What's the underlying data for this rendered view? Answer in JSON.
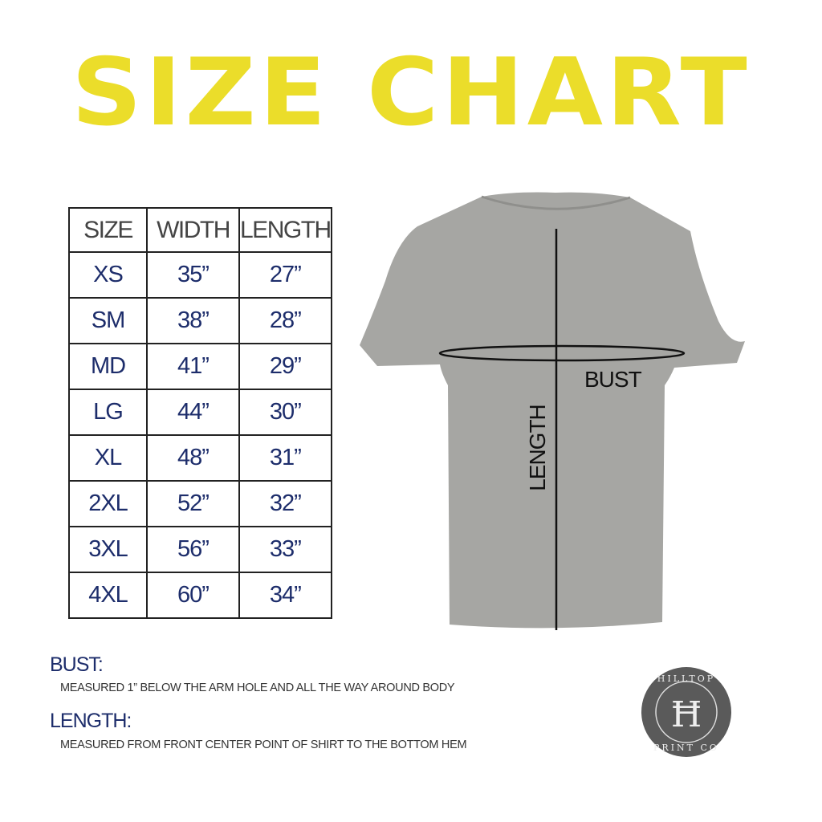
{
  "title": "SIZE CHART",
  "table": {
    "headers": [
      "SIZE",
      "WIDTH",
      "LENGTH"
    ],
    "rows": [
      [
        "XS",
        "35”",
        "27”"
      ],
      [
        "SM",
        "38”",
        "28”"
      ],
      [
        "MD",
        "41”",
        "29”"
      ],
      [
        "LG",
        "44”",
        "30”"
      ],
      [
        "XL",
        "48”",
        "31”"
      ],
      [
        "2XL",
        "52”",
        "32”"
      ],
      [
        "3XL",
        "56”",
        "33”"
      ],
      [
        "4XL",
        "60”",
        "34”"
      ]
    ]
  },
  "diagram": {
    "bust_label": "BUST",
    "length_label": "LENGTH"
  },
  "notes": [
    {
      "heading": "BUST:",
      "text": "MEASURED 1” BELOW THE ARM HOLE AND ALL THE WAY AROUND BODY"
    },
    {
      "heading": "LENGTH:",
      "text": "MEASURED FROM FRONT CENTER POINT OF SHIRT TO THE BOTTOM HEM"
    }
  ],
  "logo": {
    "text": "HILLTOP PRINT CO",
    "monogram": "HT"
  },
  "colors": {
    "title": "#ebdd2a",
    "table_text": "#1d2d6b",
    "shirt": "#a6a6a3"
  }
}
